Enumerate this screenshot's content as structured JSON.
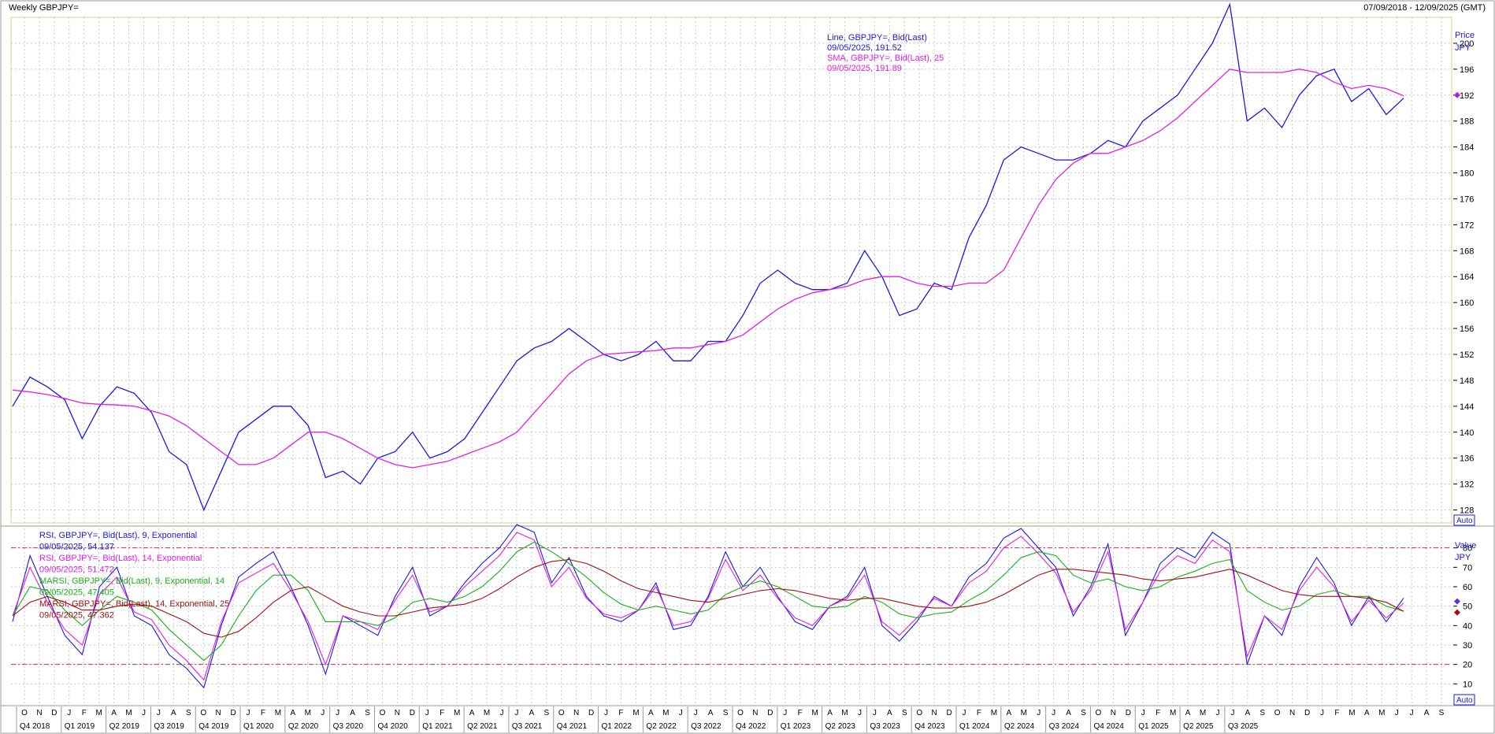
{
  "header": {
    "title": "Weekly GBPJPY=",
    "date_range": "07/09/2018 - 12/09/2025 (GMT)"
  },
  "price_axis": {
    "label": "Price",
    "unit": "JPY",
    "ticks": [
      128,
      132,
      136,
      140,
      144,
      148,
      152,
      156,
      160,
      164,
      168,
      172,
      176,
      180,
      184,
      188,
      192,
      196,
      200
    ],
    "marker_value": "192",
    "auto_button": "Auto"
  },
  "indicator_axis": {
    "label": "Value",
    "unit": "JPY",
    "ticks": [
      10,
      20,
      30,
      40,
      50,
      60,
      70,
      80
    ],
    "marker_value": "50",
    "auto_button": "Auto"
  },
  "price_legend": [
    {
      "text": "Line, GBPJPY=, Bid(Last)",
      "color": "#1a1adc"
    },
    {
      "text": "09/05/2025, 191.52",
      "color": "#1a1adc"
    },
    {
      "text": "SMA, GBPJPY=, Bid(Last),  25",
      "color": "#e020e0"
    },
    {
      "text": "09/05/2025, 191.89",
      "color": "#e020e0"
    }
  ],
  "indicator_legend": [
    {
      "text": "RSI, GBPJPY=, Bid(Last),  9, Exponential",
      "color": "#1a1adc"
    },
    {
      "text": "09/05/2025, 54.137",
      "color": "#1a1adc"
    },
    {
      "text": "RSI, GBPJPY=, Bid(Last),  14, Exponential",
      "color": "#e020e0"
    },
    {
      "text": "09/05/2025, 51.472",
      "color": "#e020e0"
    },
    {
      "text": "MARSI, GBPJPY=, Bid(Last),  9, Exponential, 14",
      "color": "#18b018"
    },
    {
      "text": "09/05/2025, 47.405",
      "color": "#18b018"
    },
    {
      "text": "MARSI, GBPJPY=, Bid(Last),  14, Exponential, 25",
      "color": "#a01010"
    },
    {
      "text": "09/05/2025, 47.362",
      "color": "#a01010"
    }
  ],
  "time_axis": {
    "months": [
      "O",
      "N",
      "D",
      "J",
      "F",
      "M",
      "A",
      "M",
      "J",
      "J",
      "A",
      "S",
      "O",
      "N",
      "D",
      "J",
      "F",
      "M",
      "A",
      "M",
      "J",
      "J",
      "A",
      "S",
      "O",
      "N",
      "D",
      "J",
      "F",
      "M",
      "A",
      "M",
      "J",
      "J",
      "A",
      "S",
      "O",
      "N",
      "D",
      "J",
      "F",
      "M",
      "A",
      "M",
      "J",
      "J",
      "A",
      "S",
      "O",
      "N",
      "D",
      "J",
      "F",
      "M",
      "A",
      "M",
      "J",
      "J",
      "A",
      "S",
      "O",
      "N",
      "D",
      "J",
      "F",
      "M",
      "A",
      "M",
      "J",
      "J",
      "A",
      "S",
      "O",
      "N",
      "D",
      "J",
      "F",
      "M",
      "A",
      "M",
      "J",
      "J",
      "A",
      "S",
      "O",
      "N",
      "D",
      "J",
      "F",
      "M",
      "A",
      "M",
      "J",
      "J",
      "A",
      "S"
    ],
    "quarters": [
      "Q4 2018",
      "Q1 2019",
      "Q2 2019",
      "Q3 2019",
      "Q4 2019",
      "Q1 2020",
      "Q2 2020",
      "Q3 2020",
      "Q4 2020",
      "Q1 2021",
      "Q2 2021",
      "Q3 2021",
      "Q4 2021",
      "Q1 2022",
      "Q2 2022",
      "Q3 2022",
      "Q4 2022",
      "Q1 2023",
      "Q2 2023",
      "Q3 2023",
      "Q4 2023",
      "Q1 2024",
      "Q2 2024",
      "Q3 2024",
      "Q4 2024",
      "Q1 2025",
      "Q2 2025",
      "Q3 2025"
    ]
  },
  "colors": {
    "price_line": "#1a1adc",
    "sma_line": "#e020e0",
    "rsi9": "#1a1adc",
    "rsi14": "#e020e0",
    "marsi9": "#18b018",
    "marsi14": "#a01010",
    "overbought_line": "#c03050"
  },
  "chart_data": [
    {
      "type": "line",
      "series": [
        {
          "name": "Line, GBPJPY=, Bid(Last)",
          "x": [
            "2018-09",
            "2018-10",
            "2018-11",
            "2018-12",
            "2019-01",
            "2019-02",
            "2019-03",
            "2019-04",
            "2019-05",
            "2019-06",
            "2019-07",
            "2019-08",
            "2019-09",
            "2019-10",
            "2019-11",
            "2019-12",
            "2020-01",
            "2020-02",
            "2020-03",
            "2020-04",
            "2020-05",
            "2020-06",
            "2020-07",
            "2020-08",
            "2020-09",
            "2020-10",
            "2020-11",
            "2020-12",
            "2021-01",
            "2021-02",
            "2021-03",
            "2021-04",
            "2021-05",
            "2021-06",
            "2021-07",
            "2021-08",
            "2021-09",
            "2021-10",
            "2021-11",
            "2021-12",
            "2022-01",
            "2022-02",
            "2022-03",
            "2022-04",
            "2022-05",
            "2022-06",
            "2022-07",
            "2022-08",
            "2022-09",
            "2022-10",
            "2022-11",
            "2022-12",
            "2023-01",
            "2023-02",
            "2023-03",
            "2023-04",
            "2023-05",
            "2023-06",
            "2023-07",
            "2023-08",
            "2023-09",
            "2023-10",
            "2023-11",
            "2023-12",
            "2024-01",
            "2024-02",
            "2024-03",
            "2024-04",
            "2024-05",
            "2024-06",
            "2024-07",
            "2024-08",
            "2024-09",
            "2024-10",
            "2024-11",
            "2024-12",
            "2025-01",
            "2025-02",
            "2025-03",
            "2025-04",
            "2025-05"
          ],
          "values": [
            144,
            148.5,
            147,
            145,
            139,
            144,
            147,
            146,
            143,
            137,
            135,
            128,
            134,
            140,
            142,
            144,
            144,
            141,
            133,
            134,
            132,
            136,
            137,
            140,
            136,
            137,
            139,
            143,
            147,
            151,
            153,
            154,
            156,
            154,
            152,
            151,
            152,
            154,
            151,
            151,
            154,
            154,
            158,
            163,
            165,
            163,
            162,
            162,
            163,
            168,
            164,
            158,
            159,
            163,
            162,
            170,
            175,
            182,
            184,
            183,
            182,
            182,
            183,
            185,
            184,
            188,
            190,
            192,
            196,
            200,
            206,
            188,
            190,
            187,
            192,
            195,
            196,
            191,
            193,
            189,
            191.52
          ]
        },
        {
          "name": "SMA, GBPJPY=, Bid(Last),  25",
          "x": [
            "2018-09",
            "2018-10",
            "2018-11",
            "2018-12",
            "2019-01",
            "2019-02",
            "2019-03",
            "2019-04",
            "2019-05",
            "2019-06",
            "2019-07",
            "2019-08",
            "2019-09",
            "2019-10",
            "2019-11",
            "2019-12",
            "2020-01",
            "2020-02",
            "2020-03",
            "2020-04",
            "2020-05",
            "2020-06",
            "2020-07",
            "2020-08",
            "2020-09",
            "2020-10",
            "2020-11",
            "2020-12",
            "2021-01",
            "2021-02",
            "2021-03",
            "2021-04",
            "2021-05",
            "2021-06",
            "2021-07",
            "2021-08",
            "2021-09",
            "2021-10",
            "2021-11",
            "2021-12",
            "2022-01",
            "2022-02",
            "2022-03",
            "2022-04",
            "2022-05",
            "2022-06",
            "2022-07",
            "2022-08",
            "2022-09",
            "2022-10",
            "2022-11",
            "2022-12",
            "2023-01",
            "2023-02",
            "2023-03",
            "2023-04",
            "2023-05",
            "2023-06",
            "2023-07",
            "2023-08",
            "2023-09",
            "2023-10",
            "2023-11",
            "2023-12",
            "2024-01",
            "2024-02",
            "2024-03",
            "2024-04",
            "2024-05",
            "2024-06",
            "2024-07",
            "2024-08",
            "2024-09",
            "2024-10",
            "2024-11",
            "2024-12",
            "2025-01",
            "2025-02",
            "2025-03",
            "2025-04",
            "2025-05"
          ],
          "values": [
            146.5,
            146.2,
            145.8,
            145.2,
            144.5,
            144.3,
            144.2,
            144,
            143.3,
            142.5,
            141,
            139,
            137,
            135,
            135,
            136,
            138,
            140,
            140,
            139,
            137.5,
            136,
            135,
            134.5,
            135,
            135.5,
            136.5,
            137.5,
            138.5,
            140,
            143,
            146,
            149,
            151,
            152,
            152.2,
            152.4,
            152.6,
            153,
            153,
            153.5,
            154,
            155,
            157,
            159,
            160.5,
            161.5,
            162,
            162.5,
            163.5,
            164,
            164,
            163,
            162.5,
            162.5,
            163,
            163,
            165,
            170,
            175,
            179,
            181.5,
            183,
            183,
            184,
            185,
            186.5,
            188.5,
            191,
            193.5,
            196,
            195.5,
            195.5,
            195.5,
            196,
            195.5,
            194,
            193,
            193.5,
            193,
            191.89
          ]
        }
      ],
      "ylabel": "Price",
      "unit": "JPY",
      "ylim": [
        126,
        204
      ],
      "grid": true,
      "legend": "top-center"
    },
    {
      "type": "line",
      "series": [
        {
          "name": "RSI, GBPJPY=, Bid(Last),  9, Exponential",
          "values": [
            42,
            76,
            55,
            35,
            25,
            60,
            70,
            45,
            40,
            25,
            18,
            8,
            40,
            65,
            72,
            78,
            60,
            40,
            15,
            45,
            40,
            35,
            55,
            70,
            45,
            50,
            62,
            72,
            80,
            92,
            88,
            62,
            75,
            55,
            45,
            42,
            48,
            62,
            38,
            40,
            55,
            78,
            60,
            70,
            55,
            42,
            38,
            50,
            55,
            70,
            40,
            32,
            42,
            55,
            50,
            65,
            72,
            85,
            90,
            80,
            70,
            45,
            60,
            82,
            35,
            52,
            72,
            80,
            75,
            88,
            82,
            20,
            45,
            35,
            60,
            75,
            62,
            40,
            55,
            42,
            54.137
          ]
        },
        {
          "name": "RSI, GBPJPY=, Bid(Last),  14, Exponential",
          "values": [
            45,
            70,
            52,
            38,
            30,
            56,
            65,
            47,
            43,
            30,
            22,
            12,
            42,
            62,
            67,
            72,
            58,
            42,
            20,
            45,
            42,
            38,
            53,
            66,
            47,
            50,
            60,
            68,
            76,
            88,
            84,
            60,
            70,
            54,
            46,
            44,
            48,
            60,
            40,
            42,
            54,
            74,
            58,
            66,
            54,
            44,
            40,
            50,
            54,
            66,
            42,
            35,
            44,
            54,
            50,
            62,
            68,
            80,
            86,
            77,
            67,
            47,
            58,
            78,
            38,
            52,
            68,
            76,
            72,
            84,
            78,
            24,
            45,
            38,
            58,
            70,
            60,
            42,
            53,
            44,
            51.472
          ]
        },
        {
          "name": "MARSI, GBPJPY=, Bid(Last),  9, Exponential, 14",
          "values": [
            45,
            60,
            58,
            48,
            40,
            48,
            55,
            52,
            48,
            38,
            30,
            22,
            30,
            45,
            58,
            66,
            66,
            58,
            42,
            42,
            42,
            40,
            44,
            52,
            54,
            52,
            55,
            60,
            68,
            78,
            83,
            78,
            72,
            65,
            57,
            51,
            48,
            50,
            48,
            46,
            48,
            56,
            60,
            63,
            60,
            55,
            50,
            49,
            50,
            55,
            52,
            46,
            44,
            46,
            47,
            53,
            58,
            66,
            75,
            78,
            76,
            66,
            62,
            64,
            60,
            58,
            60,
            65,
            68,
            72,
            74,
            58,
            52,
            48,
            50,
            56,
            58,
            55,
            55,
            50,
            47.405
          ]
        },
        {
          "name": "MARSI, GBPJPY=, Bid(Last),  14, Exponential, 25",
          "values": [
            45,
            52,
            55,
            52,
            48,
            48,
            50,
            51,
            50,
            46,
            42,
            36,
            34,
            37,
            44,
            52,
            58,
            60,
            55,
            50,
            47,
            45,
            45,
            47,
            49,
            50,
            51,
            54,
            59,
            65,
            70,
            73,
            74,
            72,
            68,
            63,
            59,
            57,
            55,
            53,
            52,
            54,
            56,
            58,
            59,
            58,
            56,
            54,
            53,
            54,
            54,
            52,
            50,
            49,
            49,
            50,
            52,
            56,
            61,
            66,
            69,
            69,
            68,
            67,
            66,
            64,
            63,
            64,
            65,
            67,
            69,
            66,
            62,
            58,
            56,
            55,
            55,
            55,
            54,
            52,
            47.362
          ]
        }
      ],
      "ylabel": "Value",
      "unit": "JPY",
      "ylim": [
        0,
        90
      ],
      "reference_lines": [
        20,
        80
      ],
      "grid": true,
      "legend": "top-left"
    }
  ]
}
